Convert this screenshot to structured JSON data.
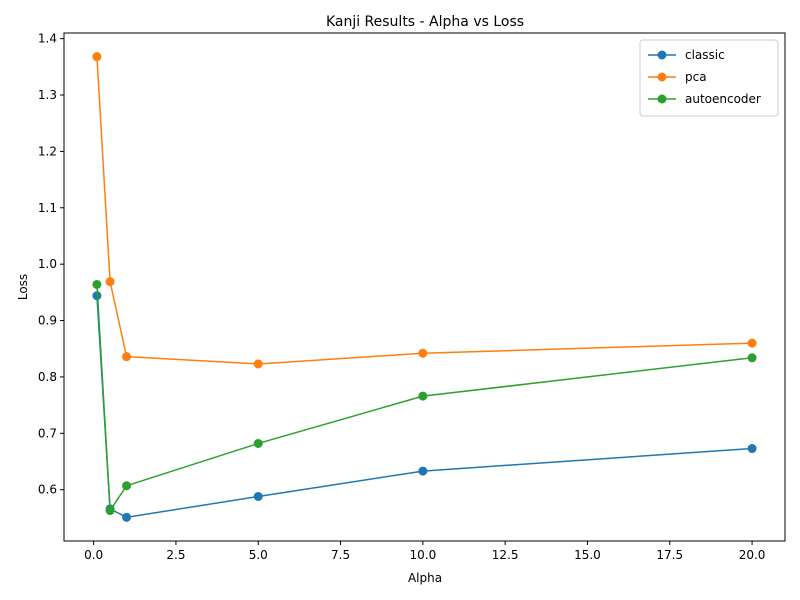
{
  "chart_data": {
    "type": "line",
    "title": "Kanji Results - Alpha vs Loss",
    "xlabel": "Alpha",
    "ylabel": "Loss",
    "xlim": [
      -0.9,
      21.0
    ],
    "ylim": [
      0.509,
      1.41
    ],
    "xticks": [
      0.0,
      2.5,
      5.0,
      7.5,
      10.0,
      12.5,
      15.0,
      17.5,
      20.0
    ],
    "xtick_labels": [
      "0.0",
      "2.5",
      "5.0",
      "7.5",
      "10.0",
      "12.5",
      "15.0",
      "17.5",
      "20.0"
    ],
    "yticks": [
      0.6,
      0.7,
      0.8,
      0.9,
      1.0,
      1.1,
      1.2,
      1.3,
      1.4
    ],
    "ytick_labels": [
      "0.6",
      "0.7",
      "0.8",
      "0.9",
      "1.0",
      "1.1",
      "1.2",
      "1.3",
      "1.4"
    ],
    "grid": false,
    "legend_position": "top-right",
    "x": [
      0.1,
      0.5,
      1,
      5,
      10,
      20
    ],
    "series": [
      {
        "name": "classic",
        "color": "#1f77b4",
        "values": [
          0.944,
          0.566,
          0.551,
          0.588,
          0.633,
          0.673
        ]
      },
      {
        "name": "pca",
        "color": "#ff7f0e",
        "values": [
          1.368,
          0.969,
          0.836,
          0.823,
          0.842,
          0.86
        ]
      },
      {
        "name": "autoencoder",
        "color": "#2ca02c",
        "values": [
          0.964,
          0.563,
          0.607,
          0.682,
          0.766,
          0.834
        ]
      }
    ]
  }
}
